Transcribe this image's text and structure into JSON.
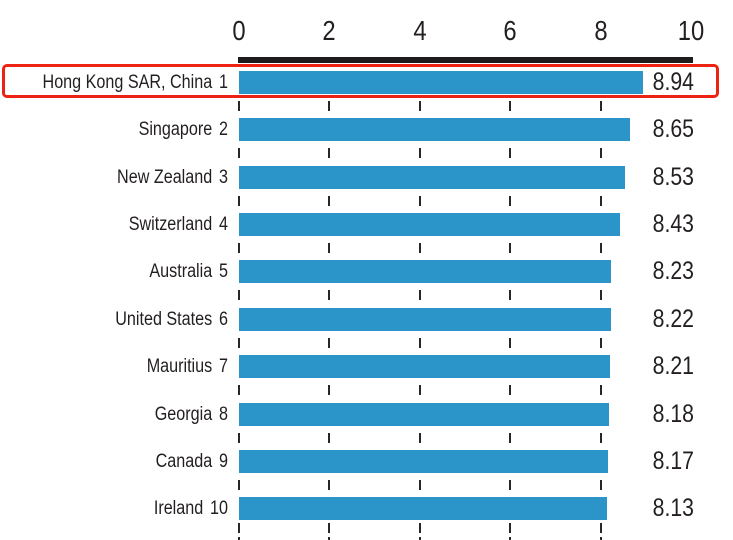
{
  "chart_data": {
    "type": "bar",
    "orientation": "horizontal",
    "title": "",
    "xlabel": "",
    "ylabel": "",
    "xlim": [
      0,
      10
    ],
    "axis_ticks": [
      0,
      2,
      4,
      6,
      8,
      10
    ],
    "gridlines": [
      0,
      2,
      4,
      6,
      8
    ],
    "grid_style": "dashed",
    "legend": "none",
    "categories": [
      "Hong Kong SAR, China",
      "Singapore",
      "New Zealand",
      "Switzerland",
      "Australia",
      "United States",
      "Mauritius",
      "Georgia",
      "Canada",
      "Ireland"
    ],
    "ranks": [
      "1",
      "2",
      "3",
      "4",
      "5",
      "6",
      "7",
      "8",
      "9",
      "10"
    ],
    "values": [
      8.94,
      8.65,
      8.53,
      8.43,
      8.23,
      8.22,
      8.21,
      8.18,
      8.17,
      8.13
    ],
    "value_labels": [
      "8.94",
      "8.65",
      "8.53",
      "8.43",
      "8.23",
      "8.22",
      "8.21",
      "8.18",
      "8.17",
      "8.13"
    ],
    "highlight": {
      "index": 0
    },
    "colors": {
      "bar": "#2b95c9",
      "axis": "#1e1c1d",
      "text": "#231f20",
      "gridline": "#2a2628",
      "highlight_border": "#ee2213",
      "background": "#ffffff"
    }
  }
}
